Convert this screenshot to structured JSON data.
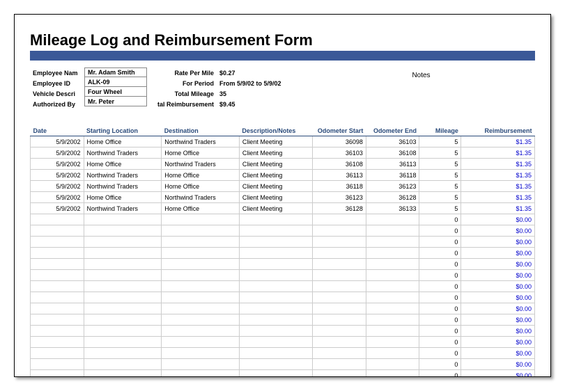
{
  "title": "Mileage Log and Reimbursement Form",
  "header": {
    "labels": {
      "employee_name": "Employee Nam",
      "employee_id": "Employee ID",
      "vehicle_desc": "Vehicle Descri",
      "authorized_by": "Authorized By",
      "rate_per_mile": "Rate Per Mile",
      "for_period": "For Period",
      "total_mileage": "Total Mileage",
      "total_reimb": "tal Reimbursement",
      "notes": "Notes"
    },
    "values": {
      "employee_name": "Mr. Adam Smith",
      "employee_id": "ALK-09",
      "vehicle_desc": "Four Wheel",
      "authorized_by": "Mr. Peter",
      "rate_per_mile": "$0.27",
      "for_period": "From 5/9/02 to 5/9/02",
      "total_mileage": "35",
      "total_reimb": "$9.45"
    }
  },
  "columns": [
    "Date",
    "Starting Location",
    "Destination",
    "Description/Notes",
    "Odometer Start",
    "Odometer End",
    "Mileage",
    "Reimbursement"
  ],
  "col_widths": [
    "66px",
    "100px",
    "100px",
    "94px",
    "66px",
    "66px",
    "50px",
    "94px"
  ],
  "rows": [
    {
      "date": "5/9/2002",
      "start": "Home Office",
      "dest": "Northwind Traders",
      "desc": "Client Meeting",
      "ostart": "36098",
      "oend": "36103",
      "mi": "5",
      "re": "$1.35"
    },
    {
      "date": "5/9/2002",
      "start": "Northwind Traders",
      "dest": "Home Office",
      "desc": "Client Meeting",
      "ostart": "36103",
      "oend": "36108",
      "mi": "5",
      "re": "$1.35"
    },
    {
      "date": "5/9/2002",
      "start": "Home Office",
      "dest": "Northwind Traders",
      "desc": "Client Meeting",
      "ostart": "36108",
      "oend": "36113",
      "mi": "5",
      "re": "$1.35"
    },
    {
      "date": "5/9/2002",
      "start": "Northwind Traders",
      "dest": "Home Office",
      "desc": "Client Meeting",
      "ostart": "36113",
      "oend": "36118",
      "mi": "5",
      "re": "$1.35"
    },
    {
      "date": "5/9/2002",
      "start": "Northwind Traders",
      "dest": "Home Office",
      "desc": "Client Meeting",
      "ostart": "36118",
      "oend": "36123",
      "mi": "5",
      "re": "$1.35"
    },
    {
      "date": "5/9/2002",
      "start": "Home Office",
      "dest": "Northwind Traders",
      "desc": "Client Meeting",
      "ostart": "36123",
      "oend": "36128",
      "mi": "5",
      "re": "$1.35"
    },
    {
      "date": "5/9/2002",
      "start": "Northwind Traders",
      "dest": "Home Office",
      "desc": "Client Meeting",
      "ostart": "36128",
      "oend": "36133",
      "mi": "5",
      "re": "$1.35"
    }
  ],
  "empty_rows": 16,
  "empty_mi": "0",
  "empty_re": "$0.00",
  "colors": {
    "bar": "#3b5998",
    "th_text": "#2a4a7a",
    "reimb_text": "#0000cc"
  }
}
